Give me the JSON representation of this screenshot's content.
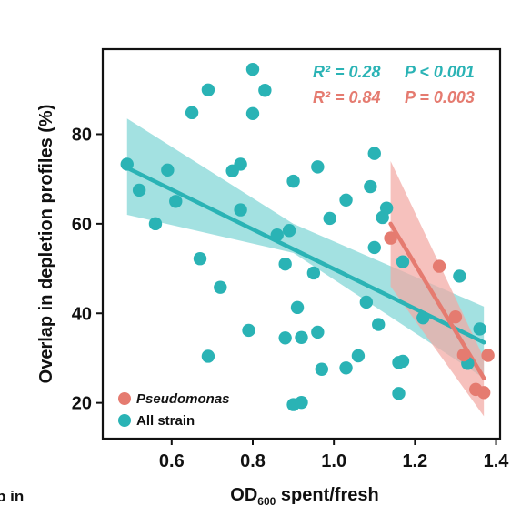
{
  "chart_data": {
    "type": "scatter",
    "xlabel": {
      "main": "OD",
      "sub": "600",
      "rest": " spent/fresh"
    },
    "ylabel": "Overlap in depletion profiles (%)",
    "xlim": [
      0.43,
      1.41
    ],
    "ylim": [
      12,
      99
    ],
    "x_ticks": [
      0.6,
      0.8,
      1.0,
      1.2,
      1.4
    ],
    "x_tick_labels": [
      "0.6",
      "0.8",
      "1.0",
      "1.2",
      "1.4"
    ],
    "y_ticks": [
      20,
      40,
      60,
      80
    ],
    "y_tick_labels": [
      "20",
      "40",
      "60",
      "80"
    ],
    "grid": false,
    "legend_position": "bottom-left",
    "annotations": [
      {
        "r2_label": "R² = 0.28",
        "p_label": "P < 0.001",
        "color": "#2ab3b5"
      },
      {
        "r2_label": "R² = 0.84",
        "p_label": "P = 0.003",
        "color": "#e57b70"
      }
    ],
    "series": [
      {
        "name": "Pseudomonas",
        "italic": true,
        "color": "#e57b70",
        "band_color": "#f2a9a3",
        "fit": {
          "x": [
            1.14,
            1.37
          ],
          "y": [
            60,
            25.5
          ]
        },
        "band": {
          "x": [
            1.14,
            1.37
          ],
          "upper": [
            74,
            30
          ],
          "lower": [
            46,
            17
          ]
        },
        "points": [
          [
            1.14,
            56.8
          ],
          [
            1.26,
            50.5
          ],
          [
            1.3,
            39.2
          ],
          [
            1.32,
            30.7
          ],
          [
            1.35,
            23.0
          ],
          [
            1.37,
            22.3
          ],
          [
            1.38,
            30.6
          ]
        ]
      },
      {
        "name": "All strain",
        "italic": false,
        "color": "#2ab3b5",
        "band_color": "#7fd6d5",
        "fit": {
          "x": [
            0.49,
            1.37
          ],
          "y": [
            72.5,
            33.5
          ]
        },
        "band": {
          "x": [
            0.49,
            0.9,
            1.37
          ],
          "upper": [
            83.5,
            60,
            41.5
          ],
          "lower": [
            62,
            53.5,
            25.5
          ]
        },
        "points": [
          [
            0.49,
            73.3
          ],
          [
            0.52,
            67.5
          ],
          [
            0.56,
            60.0
          ],
          [
            0.59,
            72.0
          ],
          [
            0.61,
            65.0
          ],
          [
            0.65,
            84.8
          ],
          [
            0.67,
            52.2
          ],
          [
            0.69,
            89.9
          ],
          [
            0.69,
            30.4
          ],
          [
            0.72,
            45.8
          ],
          [
            0.75,
            71.8
          ],
          [
            0.77,
            73.3
          ],
          [
            0.77,
            63.1
          ],
          [
            0.79,
            36.2
          ],
          [
            0.8,
            94.5
          ],
          [
            0.8,
            84.6
          ],
          [
            0.83,
            89.8
          ],
          [
            0.86,
            57.5
          ],
          [
            0.88,
            51.0
          ],
          [
            0.88,
            34.5
          ],
          [
            0.89,
            58.5
          ],
          [
            0.9,
            69.5
          ],
          [
            0.9,
            19.6
          ],
          [
            0.91,
            41.3
          ],
          [
            0.92,
            34.6
          ],
          [
            0.92,
            20.1
          ],
          [
            0.95,
            49.0
          ],
          [
            0.96,
            72.7
          ],
          [
            0.96,
            35.8
          ],
          [
            0.97,
            27.5
          ],
          [
            0.99,
            61.2
          ],
          [
            1.03,
            65.3
          ],
          [
            1.03,
            27.8
          ],
          [
            1.06,
            30.5
          ],
          [
            1.08,
            42.5
          ],
          [
            1.09,
            68.3
          ],
          [
            1.1,
            75.7
          ],
          [
            1.1,
            54.7
          ],
          [
            1.11,
            37.5
          ],
          [
            1.12,
            61.4
          ],
          [
            1.13,
            63.5
          ],
          [
            1.16,
            29.0
          ],
          [
            1.16,
            22.1
          ],
          [
            1.17,
            51.5
          ],
          [
            1.17,
            29.3
          ],
          [
            1.22,
            39.0
          ],
          [
            1.31,
            48.3
          ],
          [
            1.33,
            28.8
          ],
          [
            1.36,
            36.5
          ]
        ]
      }
    ]
  },
  "cropped_text": "p in"
}
